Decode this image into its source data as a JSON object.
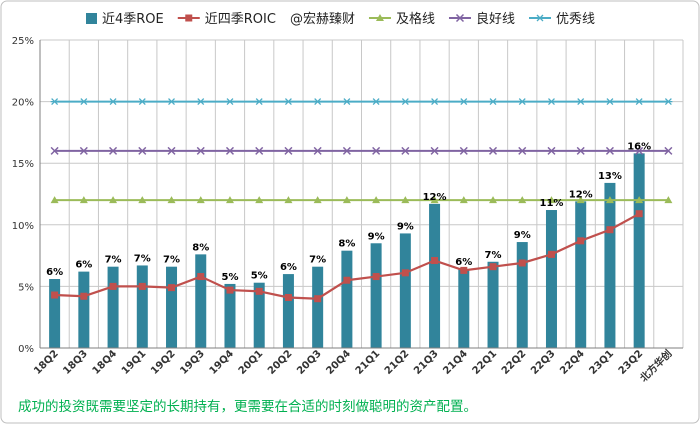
{
  "chart_data": {
    "type": "bar",
    "categories": [
      "18Q2",
      "18Q3",
      "18Q4",
      "19Q1",
      "19Q2",
      "19Q3",
      "19Q4",
      "20Q1",
      "20Q2",
      "20Q3",
      "20Q4",
      "21Q1",
      "21Q2",
      "21Q3",
      "21Q4",
      "22Q1",
      "22Q2",
      "22Q3",
      "22Q4",
      "23Q1",
      "23Q2",
      "北方华创"
    ],
    "ylim": [
      0,
      25
    ],
    "yticks": [
      0,
      5,
      10,
      15,
      20,
      25
    ],
    "ytick_labels": [
      "0%",
      "5%",
      "10%",
      "15%",
      "20%",
      "25%"
    ],
    "grid": true,
    "legend_position": "top",
    "series": [
      {
        "name": "近4季ROE",
        "kind": "bar",
        "color": "#31849b",
        "values": [
          5.6,
          6.2,
          6.6,
          6.7,
          6.6,
          7.6,
          5.2,
          5.3,
          6.0,
          6.6,
          7.9,
          8.5,
          9.3,
          11.7,
          6.4,
          7.0,
          8.6,
          11.2,
          11.9,
          13.4,
          15.8,
          null
        ],
        "data_labels": [
          "6%",
          "6%",
          "7%",
          "7%",
          "7%",
          "8%",
          "5%",
          "5%",
          "6%",
          "7%",
          "8%",
          "9%",
          "9%",
          "12%",
          "6%",
          "7%",
          "9%",
          "11%",
          "12%",
          "13%",
          "16%",
          ""
        ]
      },
      {
        "name": "近四季ROIC",
        "kind": "line",
        "color": "#c0504d",
        "values": [
          4.3,
          4.2,
          5.0,
          5.0,
          4.9,
          5.8,
          4.7,
          4.6,
          4.1,
          4.0,
          5.5,
          5.8,
          6.1,
          7.1,
          6.3,
          6.6,
          6.9,
          7.6,
          8.7,
          9.6,
          10.9,
          null
        ]
      },
      {
        "name": "及格线",
        "kind": "line",
        "color": "#9bbb59",
        "marker": "triangle",
        "values": [
          12,
          12,
          12,
          12,
          12,
          12,
          12,
          12,
          12,
          12,
          12,
          12,
          12,
          12,
          12,
          12,
          12,
          12,
          12,
          12,
          12,
          12
        ]
      },
      {
        "name": "良好线",
        "kind": "line",
        "color": "#8064a2",
        "marker": "x",
        "values": [
          16,
          16,
          16,
          16,
          16,
          16,
          16,
          16,
          16,
          16,
          16,
          16,
          16,
          16,
          16,
          16,
          16,
          16,
          16,
          16,
          16,
          16
        ]
      },
      {
        "name": "优秀线",
        "kind": "line",
        "color": "#4bacc6",
        "marker": "star",
        "values": [
          20,
          20,
          20,
          20,
          20,
          20,
          20,
          20,
          20,
          20,
          20,
          20,
          20,
          20,
          20,
          20,
          20,
          20,
          20,
          20,
          20,
          20
        ]
      }
    ],
    "watermark": "@宏赫臻财",
    "caption": "成功的投资既需要坚定的长期持有，更需要在合适的时刻做聪明的资产配置。"
  }
}
